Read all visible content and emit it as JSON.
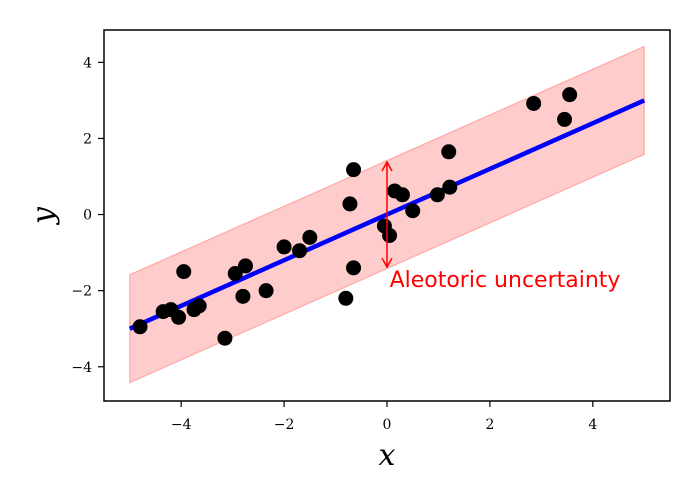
{
  "chart_data": {
    "type": "scatter",
    "xlabel": "x",
    "ylabel": "y",
    "xlim": [
      -5.5,
      5.5
    ],
    "ylim": [
      -4.9,
      4.85
    ],
    "x_ticks": [
      -4,
      -2,
      0,
      2,
      4
    ],
    "y_ticks": [
      -4,
      -2,
      0,
      2,
      4
    ],
    "x_tick_labels": [
      "−4",
      "−2",
      "0",
      "2",
      "4"
    ],
    "y_tick_labels": [
      "−4",
      "−2",
      "0",
      "2",
      "4"
    ],
    "grid": false,
    "points": [
      {
        "x": -4.8,
        "y": -2.95
      },
      {
        "x": -4.35,
        "y": -2.55
      },
      {
        "x": -4.2,
        "y": -2.5
      },
      {
        "x": -4.05,
        "y": -2.7
      },
      {
        "x": -3.95,
        "y": -1.5
      },
      {
        "x": -3.75,
        "y": -2.5
      },
      {
        "x": -3.65,
        "y": -2.4
      },
      {
        "x": -3.15,
        "y": -3.25
      },
      {
        "x": -2.95,
        "y": -1.55
      },
      {
        "x": -2.8,
        "y": -2.15
      },
      {
        "x": -2.75,
        "y": -1.35
      },
      {
        "x": -2.35,
        "y": -2.0
      },
      {
        "x": -2.0,
        "y": -0.85
      },
      {
        "x": -1.7,
        "y": -0.95
      },
      {
        "x": -1.5,
        "y": -0.6
      },
      {
        "x": -0.8,
        "y": -2.2
      },
      {
        "x": -0.72,
        "y": 0.28
      },
      {
        "x": -0.65,
        "y": 1.18
      },
      {
        "x": -0.65,
        "y": -1.4
      },
      {
        "x": -0.05,
        "y": -0.3
      },
      {
        "x": 0.05,
        "y": -0.55
      },
      {
        "x": 0.15,
        "y": 0.62
      },
      {
        "x": 0.3,
        "y": 0.52
      },
      {
        "x": 0.5,
        "y": 0.1
      },
      {
        "x": 0.98,
        "y": 0.52
      },
      {
        "x": 1.2,
        "y": 1.65
      },
      {
        "x": 1.22,
        "y": 0.72
      },
      {
        "x": 2.85,
        "y": 2.92
      },
      {
        "x": 3.45,
        "y": 2.5
      },
      {
        "x": 3.55,
        "y": 3.15
      }
    ],
    "fit_line": {
      "x": [
        -5,
        5
      ],
      "y": [
        -3.0,
        3.0
      ],
      "color": "#0000ff"
    },
    "band": {
      "x": [
        -5,
        5
      ],
      "half_width": 1.42,
      "color": "#ff0000",
      "opacity": 0.2
    },
    "annotation": {
      "text": "Aleotoric uncertainty",
      "arrow_x": 0,
      "arrow_y": [
        -1.38,
        1.38
      ],
      "text_x": 0.05,
      "text_y": -1.75,
      "color": "#ff0000"
    },
    "colors": {
      "points": "#000000",
      "fit": "#0000ff",
      "band": "#ff0000"
    }
  }
}
